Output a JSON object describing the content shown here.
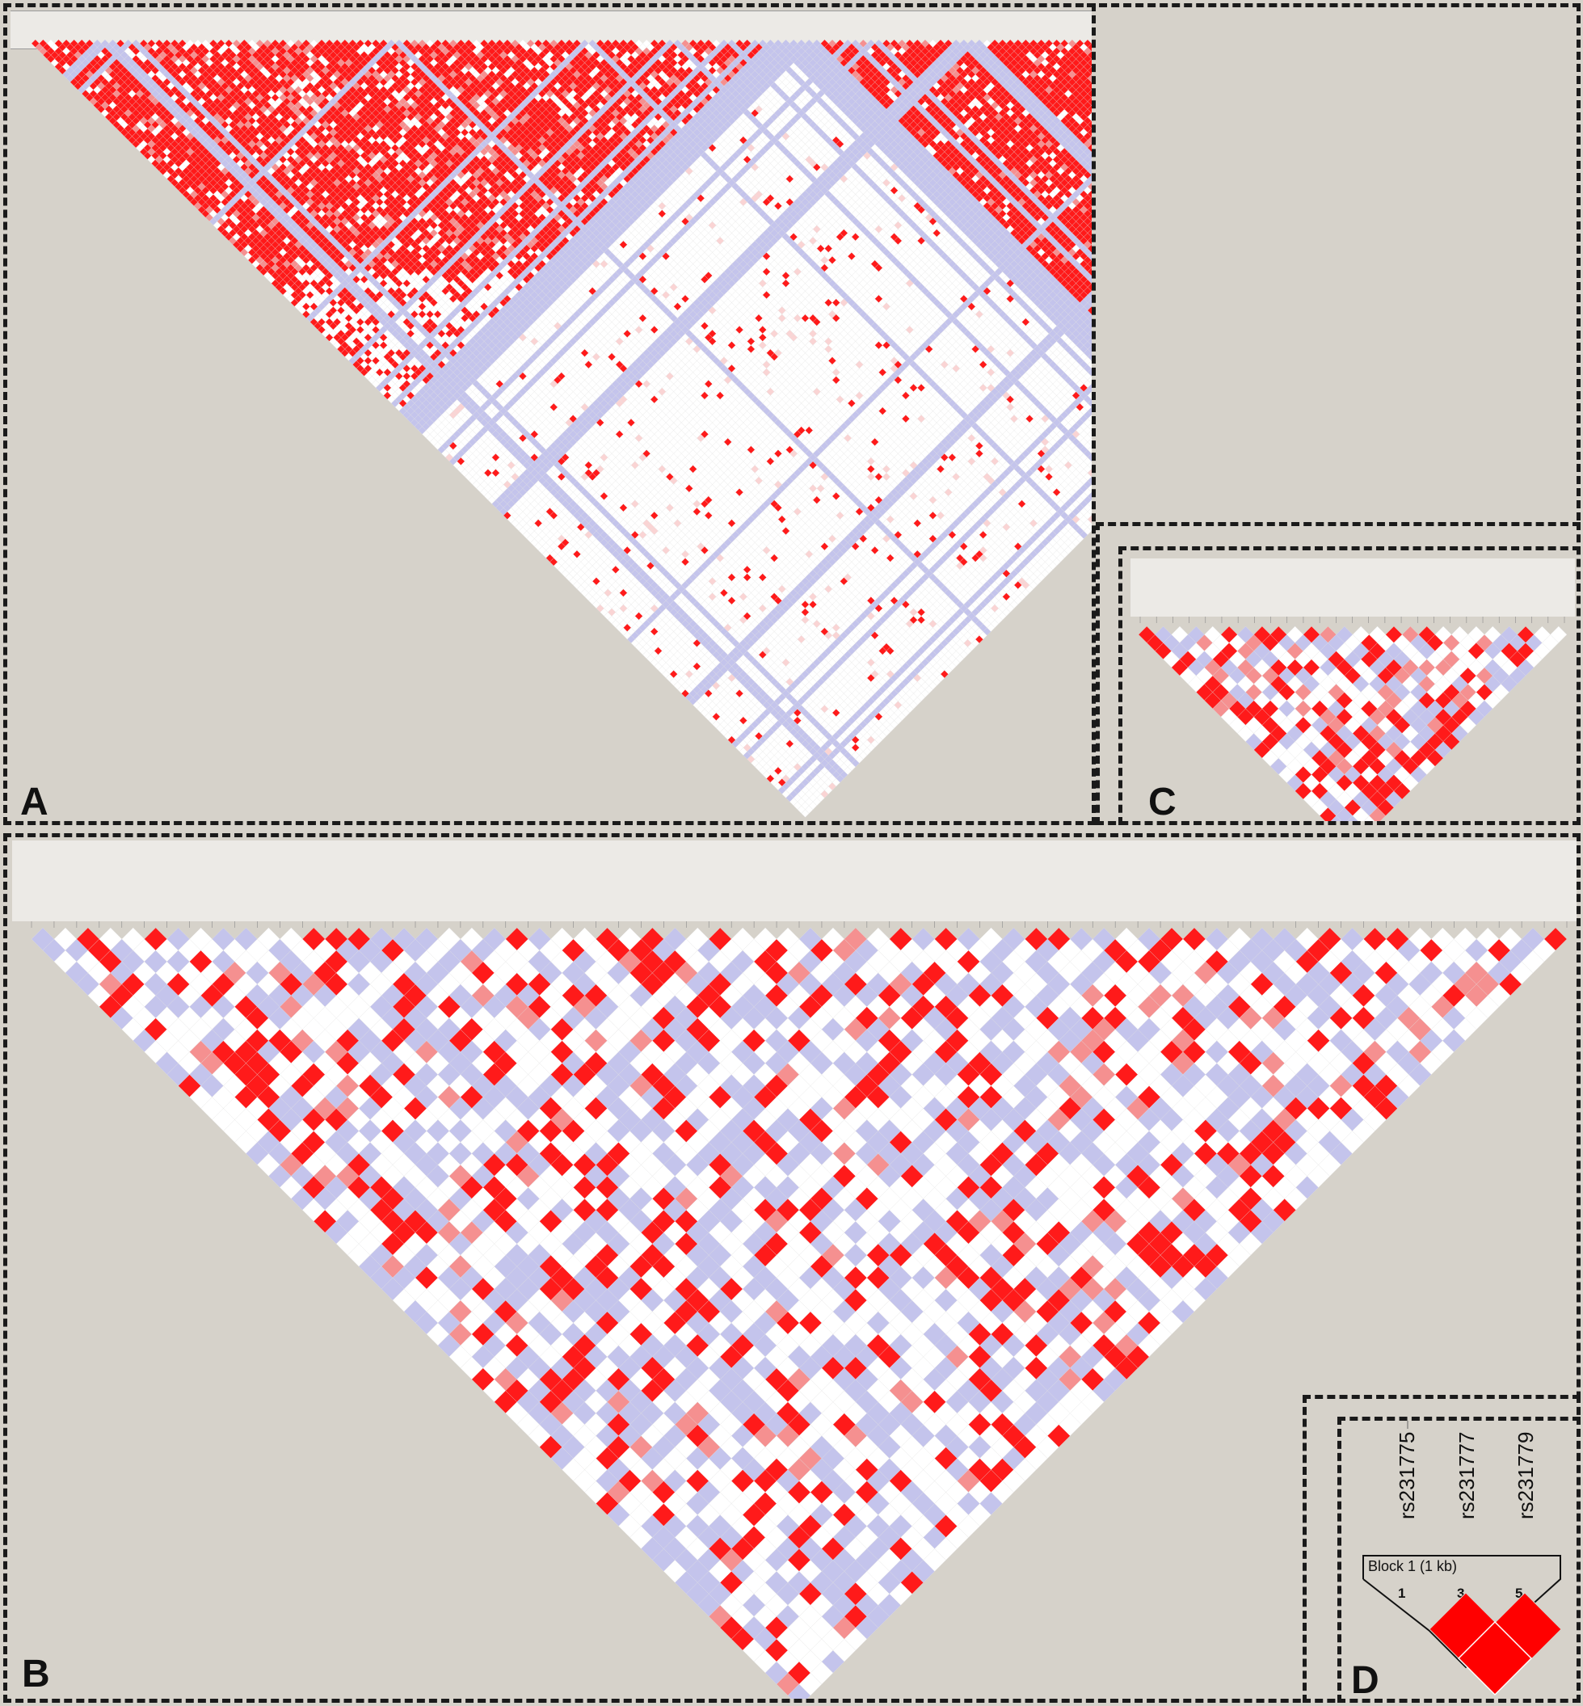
{
  "colors": {
    "strong_ld": "#ff1a1a",
    "medium_ld": "#f59090",
    "weak_ld": "#fad4d4",
    "no_ld": "#ffffff",
    "low_lod": "#c4c4ec",
    "background": "#d6d2ca"
  },
  "panels": [
    {
      "letter": "A"
    },
    {
      "letter": "B"
    },
    {
      "letter": "C"
    },
    {
      "letter": "D"
    }
  ],
  "panel_d": {
    "snps": [
      "rs231775",
      "rs231777",
      "rs231779"
    ],
    "block_label": "Block 1 (1 kb)",
    "marker_numbers": [
      "1",
      "3",
      "5"
    ],
    "cells": [
      {
        "pair": "1-3",
        "ld": "strong"
      },
      {
        "pair": "3-5",
        "ld": "strong"
      },
      {
        "pair": "1-5",
        "ld": "strong"
      }
    ]
  }
}
